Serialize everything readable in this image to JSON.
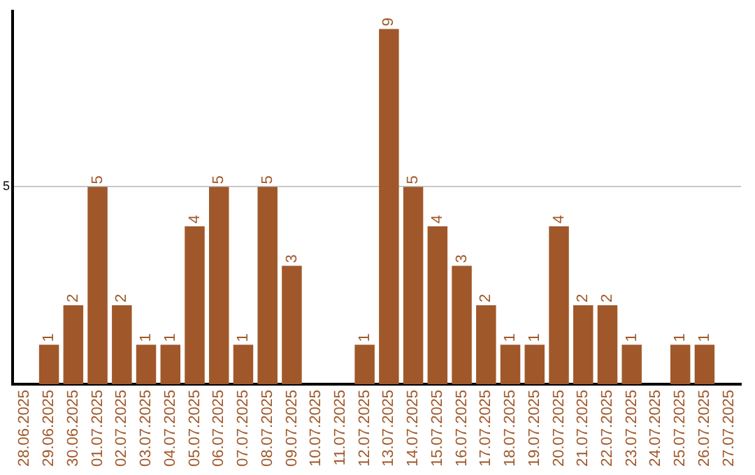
{
  "chart_data": {
    "type": "bar",
    "categories": [
      "28.06.2025",
      "29.06.2025",
      "30.06.2025",
      "01.07.2025",
      "02.07.2025",
      "03.07.2025",
      "04.07.2025",
      "05.07.2025",
      "06.07.2025",
      "07.07.2025",
      "08.07.2025",
      "09.07.2025",
      "10.07.2025",
      "11.07.2025",
      "12.07.2025",
      "13.07.2025",
      "14.07.2025",
      "15.07.2025",
      "16.07.2025",
      "17.07.2025",
      "18.07.2025",
      "19.07.2025",
      "20.07.2025",
      "21.07.2025",
      "22.07.2025",
      "23.07.2025",
      "24.07.2025",
      "25.07.2025",
      "26.07.2025",
      "27.07.2025"
    ],
    "values": [
      null,
      1,
      2,
      5,
      2,
      1,
      1,
      4,
      5,
      1,
      5,
      3,
      null,
      null,
      1,
      9,
      5,
      4,
      3,
      2,
      1,
      1,
      4,
      2,
      2,
      1,
      null,
      1,
      1,
      null
    ],
    "color": "#a0582a",
    "ylim": [
      0,
      9.45
    ],
    "yticks": [
      5
    ],
    "grid": "y",
    "legend": false,
    "data_labels": true
  }
}
